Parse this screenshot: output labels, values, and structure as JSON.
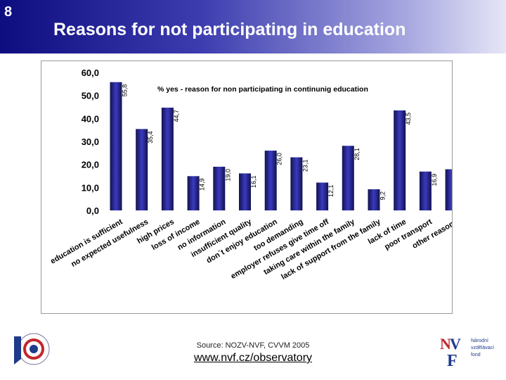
{
  "slide": {
    "number": "8",
    "title": "Reasons for not participating in education",
    "source": "Source: NOZV-NVF, CVVM 2005",
    "url": "www.nvf.cz/observatory"
  },
  "logos": {
    "left_icon": "nozv-logo",
    "right_icon": "nvf-logo",
    "right_lines": [
      "Národní",
      "vzdělávací",
      "fond"
    ]
  },
  "chart_data": {
    "type": "bar",
    "title": "% yes - reason for non participating in continunig education",
    "ylim": [
      0,
      60
    ],
    "yticks": [
      "0,0",
      "10,0",
      "20,0",
      "30,0",
      "40,0",
      "50,0",
      "60,0"
    ],
    "categories": [
      "education is sufficient",
      "no expected usefulness",
      "high prices",
      "loss of income",
      "no information",
      "insufficient quality",
      "don´t enjoy education",
      "too demanding",
      "employer refuses give time off",
      "taking care within the family",
      "lack of support from the family",
      "lack of time",
      "poor transport",
      "other reasons"
    ],
    "values": [
      55.8,
      35.4,
      44.7,
      14.9,
      19.0,
      16.1,
      26.0,
      23.1,
      12.1,
      28.1,
      9.2,
      43.5,
      16.9,
      17.9
    ],
    "value_labels": [
      "55,8",
      "35,4",
      "44,7",
      "14,9",
      "19,0",
      "16,1",
      "26,0",
      "23,1",
      "12,1",
      "28,1",
      "9,2",
      "43,5",
      "16,9",
      "17,9"
    ],
    "colors": {
      "bar_dark": "#12124f",
      "bar_mid": "#3a3ac0",
      "bar_light": "#7a7ae0"
    }
  }
}
